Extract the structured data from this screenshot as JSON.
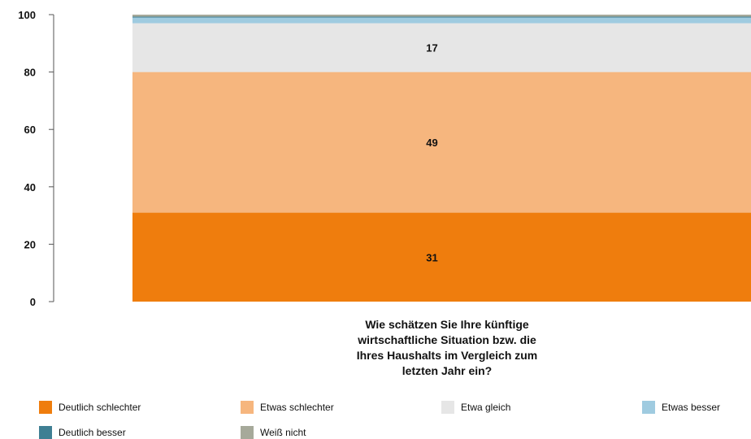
{
  "chart_data": {
    "type": "bar",
    "stacked": true,
    "categories": [
      "Wie schätzen Sie Ihre künftige wirtschaftliche Situation bzw. die Ihres Haushalts im Vergleich zum letzten Jahr ein?"
    ],
    "category_lines": [
      "Wie schätzen Sie Ihre künftige",
      "wirtschaftliche Situation bzw. die",
      "Ihres Haushalts im Vergleich zum",
      "letzten Jahr ein?"
    ],
    "series": [
      {
        "name": "Deutlich schlechter",
        "values": [
          31
        ],
        "color": "#ef7d0d",
        "label": "31"
      },
      {
        "name": "Etwas schlechter",
        "values": [
          49
        ],
        "color": "#f6b67e",
        "label": "49"
      },
      {
        "name": "Etwa gleich",
        "values": [
          17
        ],
        "color": "#e6e6e6",
        "label": "17"
      },
      {
        "name": "Etwas besser",
        "values": [
          2
        ],
        "color": "#9fcbe0",
        "label": ""
      },
      {
        "name": "Deutlich besser",
        "values": [
          0.3
        ],
        "color": "#3f7f93",
        "label": ""
      },
      {
        "name": "Weiß nicht",
        "values": [
          0.7
        ],
        "color": "#a6a99a",
        "label": ""
      }
    ],
    "yticks": [
      0,
      20,
      40,
      60,
      80,
      100
    ],
    "ylim": [
      0,
      100
    ],
    "legend_position": "bottom",
    "title": "",
    "xlabel": "",
    "ylabel": ""
  }
}
